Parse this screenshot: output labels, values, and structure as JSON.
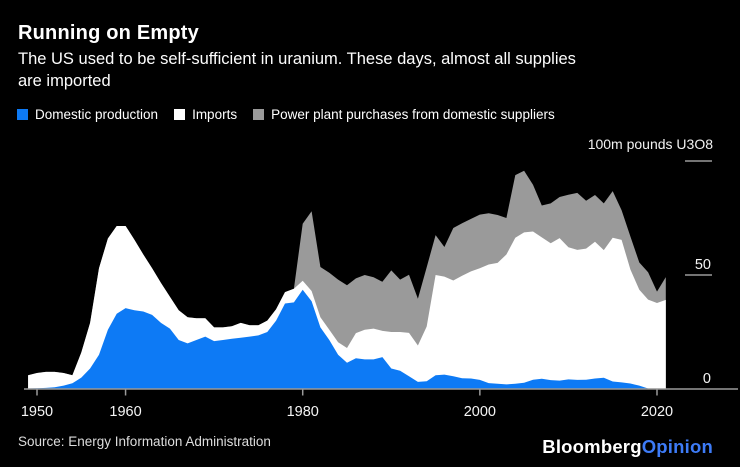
{
  "chart_data": {
    "type": "area",
    "stacked": true,
    "title": "Running on Empty",
    "subtitle_lines": [
      "The US used to be self-sufficient in uranium. These days, almost all supplies",
      "are imported"
    ],
    "unit_label": "100m pounds U3O8",
    "background_color": "#000000",
    "axis_color": "#9a9a9a",
    "tick_label_color": "#f5f5f5",
    "grid": false,
    "legend_position": "top",
    "xlim": [
      1949,
      2021
    ],
    "ylim": [
      0,
      100
    ],
    "x_ticks": [
      1950,
      1960,
      1980,
      2000,
      2020
    ],
    "y_ticks": [
      {
        "value": 0,
        "label": "0"
      },
      {
        "value": 50,
        "label": "50"
      },
      {
        "value": 100,
        "label": ""
      }
    ],
    "x": [
      1949,
      1950,
      1951,
      1952,
      1953,
      1954,
      1955,
      1956,
      1957,
      1958,
      1959,
      1960,
      1961,
      1962,
      1963,
      1964,
      1965,
      1966,
      1967,
      1968,
      1969,
      1970,
      1971,
      1972,
      1973,
      1974,
      1975,
      1976,
      1977,
      1978,
      1979,
      1980,
      1981,
      1982,
      1983,
      1984,
      1985,
      1986,
      1987,
      1988,
      1989,
      1990,
      1991,
      1992,
      1993,
      1994,
      1995,
      1996,
      1997,
      1998,
      1999,
      2000,
      2001,
      2002,
      2003,
      2004,
      2005,
      2006,
      2007,
      2008,
      2009,
      2010,
      2011,
      2012,
      2013,
      2014,
      2015,
      2016,
      2017,
      2018,
      2019,
      2020,
      2021
    ],
    "series": [
      {
        "name": "Domestic production",
        "color": "#0d7af5",
        "values": [
          0.2,
          0.3,
          0.5,
          0.8,
          1.5,
          2.5,
          5,
          9,
          15,
          26,
          33,
          35.5,
          34.5,
          34,
          32.5,
          29,
          26.5,
          21.5,
          20,
          21.5,
          23,
          21,
          21.5,
          22,
          22.5,
          23,
          23.5,
          25,
          30,
          37.5,
          38,
          43.5,
          38.5,
          27,
          21.5,
          15,
          11.5,
          13.5,
          13,
          13,
          14,
          9,
          8,
          5.6,
          3.1,
          3.4,
          6,
          6.3,
          5.6,
          4.7,
          4.6,
          4,
          2.6,
          2.3,
          2,
          2.3,
          2.7,
          4.1,
          4.5,
          3.9,
          3.7,
          4.2,
          4,
          4.1,
          4.6,
          4.9,
          3.3,
          2.9,
          2.4,
          1.5,
          0.2,
          0.2,
          0.1
        ]
      },
      {
        "name": "Imports",
        "color": "#ffffff",
        "values": [
          5.8,
          6.7,
          7,
          6.7,
          5.5,
          3.5,
          11,
          20,
          38,
          40,
          38.5,
          36,
          31,
          25,
          20.5,
          17.5,
          14,
          13,
          11.5,
          9.5,
          8,
          6,
          5.5,
          5.5,
          6.5,
          5,
          4.5,
          5,
          5,
          5,
          6,
          4,
          4.5,
          4.5,
          4.5,
          5.5,
          6.5,
          11,
          13,
          13.5,
          11.5,
          16,
          17,
          19,
          16,
          24,
          44,
          43,
          42,
          45,
          47,
          49,
          52,
          53,
          57,
          64,
          66,
          65,
          62,
          60,
          62.5,
          58,
          57,
          57.5,
          60,
          56,
          63,
          62.5,
          50,
          42,
          39,
          37.5,
          39
        ]
      },
      {
        "name": "Power plant purchases from domestic suppliers",
        "color": "#9a9a9a",
        "values": [
          0,
          0,
          0,
          0,
          0,
          0,
          0,
          0,
          0,
          0,
          0,
          0,
          0,
          0,
          0,
          0,
          0,
          0,
          0,
          0,
          0,
          0,
          0,
          0,
          0,
          0,
          0,
          0,
          0,
          0,
          0,
          25,
          35,
          22,
          25,
          27.5,
          27.5,
          24,
          24,
          22.5,
          21.5,
          27,
          23,
          25.5,
          20.5,
          26,
          17.5,
          13,
          23,
          23,
          23,
          23.5,
          22.5,
          21,
          16,
          27.5,
          27,
          20.5,
          14,
          17.5,
          18,
          23,
          25,
          21,
          20.5,
          20.5,
          20.5,
          13,
          14.5,
          12,
          12,
          5,
          10
        ]
      }
    ]
  },
  "footer": {
    "source": "Source: Energy Information Administration",
    "brand": "Bloomberg",
    "brand_color": "#ffffff",
    "brand_suffix": "Opinion",
    "brand_suffix_color": "#3d7bf7"
  }
}
